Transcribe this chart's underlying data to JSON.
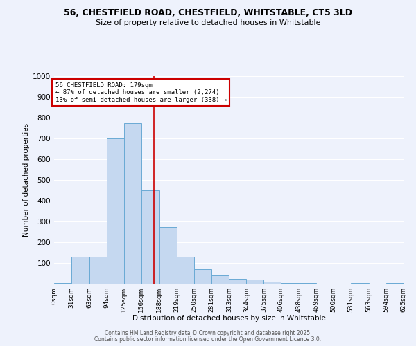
{
  "title1": "56, CHESTFIELD ROAD, CHESTFIELD, WHITSTABLE, CT5 3LD",
  "title2": "Size of property relative to detached houses in Whitstable",
  "xlabel": "Distribution of detached houses by size in Whitstable",
  "ylabel": "Number of detached properties",
  "bin_edges": [
    0,
    31,
    63,
    94,
    125,
    156,
    188,
    219,
    250,
    281,
    313,
    344,
    375,
    406,
    438,
    469,
    500,
    531,
    563,
    594,
    625
  ],
  "bin_heights": [
    5,
    130,
    130,
    700,
    775,
    450,
    275,
    130,
    70,
    40,
    25,
    20,
    10,
    5,
    5,
    0,
    0,
    5,
    0,
    5
  ],
  "bar_color": "#c5d8f0",
  "bar_edge_color": "#6aaad4",
  "vline_x": 179,
  "vline_color": "#cc0000",
  "annotation_text": "56 CHESTFIELD ROAD: 179sqm\n← 87% of detached houses are smaller (2,274)\n13% of semi-detached houses are larger (338) →",
  "annotation_box_color": "white",
  "annotation_box_edge_color": "#cc0000",
  "ylim": [
    0,
    1000
  ],
  "yticks": [
    0,
    100,
    200,
    300,
    400,
    500,
    600,
    700,
    800,
    900,
    1000
  ],
  "background_color": "#eef2fc",
  "grid_color": "#ffffff",
  "footer_text1": "Contains HM Land Registry data © Crown copyright and database right 2025.",
  "footer_text2": "Contains public sector information licensed under the Open Government Licence 3.0.",
  "tick_labels": [
    "0sqm",
    "31sqm",
    "63sqm",
    "94sqm",
    "125sqm",
    "156sqm",
    "188sqm",
    "219sqm",
    "250sqm",
    "281sqm",
    "313sqm",
    "344sqm",
    "375sqm",
    "406sqm",
    "438sqm",
    "469sqm",
    "500sqm",
    "531sqm",
    "563sqm",
    "594sqm",
    "625sqm"
  ]
}
